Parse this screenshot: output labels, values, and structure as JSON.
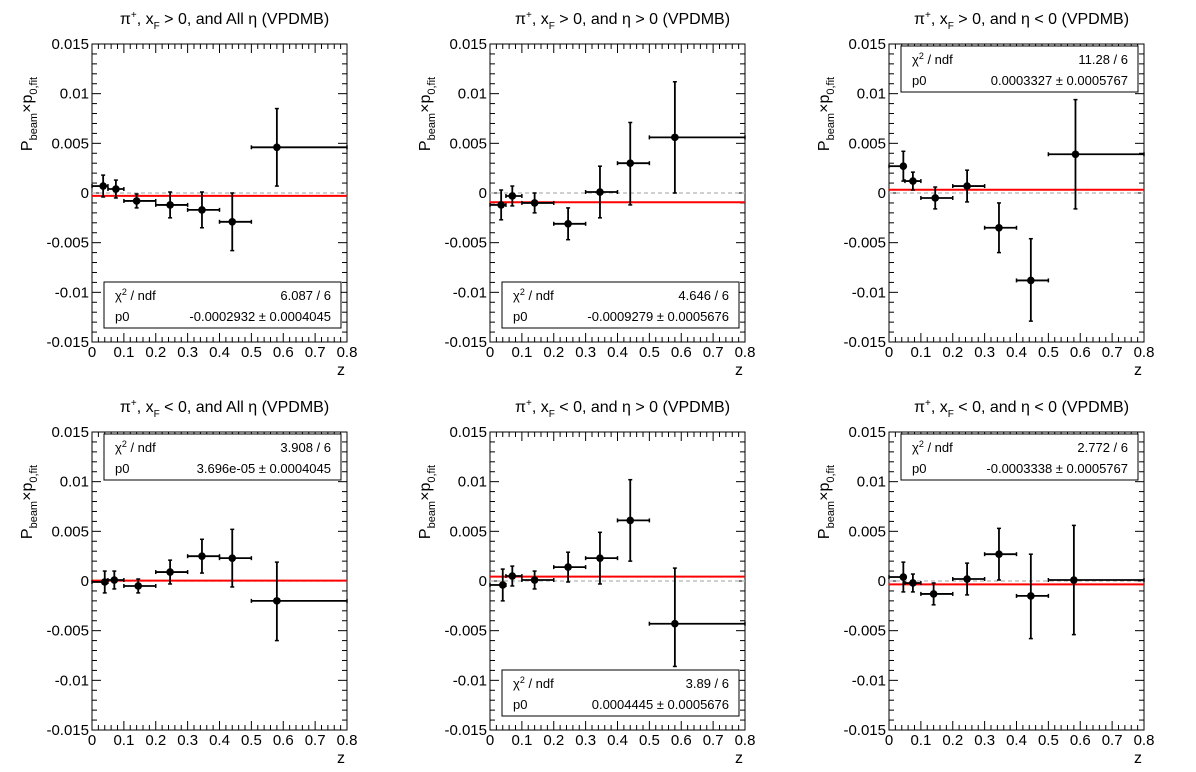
{
  "common": {
    "ylabel": "P_beam×p_0,fit",
    "ylabel_main": "P",
    "ylabel_sub1": "beam",
    "ylabel_mid": "×p",
    "ylabel_sub2": "0,fit",
    "xlabel": "z",
    "stat_row1_label": "χ² / ndf",
    "stat_row2_label": "p0",
    "fit_line_color": "#ff0000",
    "marker_color": "#000000",
    "zero_line_color": "#b4b4b4"
  },
  "chart_data": [
    {
      "type": "scatter",
      "title": "π⁺, x_F > 0, and All η (VPDMB)",
      "title_parts": [
        "π",
        "+",
        ", x",
        "F",
        " > 0, and All η (VPDMB)"
      ],
      "xlabel": "z",
      "ylabel": "P_beam×p_0,fit",
      "xlim": [
        0,
        0.8
      ],
      "ylim": [
        -0.015,
        0.015
      ],
      "xticks": [
        "0",
        "0.1",
        "0.2",
        "0.3",
        "0.4",
        "0.5",
        "0.6",
        "0.7",
        "0.8"
      ],
      "yticks": [
        "-0.015",
        "-0.01",
        "-0.005",
        "0",
        "0.005",
        "0.01",
        "0.015"
      ],
      "stats_position": "bottom-center",
      "stats": {
        "chi2_ndf": "6.087 / 6",
        "p0": "-0.0002932 ± 0.0004045"
      },
      "fit": {
        "p0": -0.0002932
      },
      "series": [
        {
          "points": [
            {
              "x": 0.035,
              "y": 0.0007,
              "xlo": 0.0,
              "xhi": 0.05,
              "ylo": -0.0004,
              "yhi": 0.0018
            },
            {
              "x": 0.075,
              "y": 0.0004,
              "xlo": 0.05,
              "xhi": 0.1,
              "ylo": -0.0005,
              "yhi": 0.0013
            },
            {
              "x": 0.14,
              "y": -0.0008,
              "xlo": 0.1,
              "xhi": 0.2,
              "ylo": -0.0015,
              "yhi": -0.0001
            },
            {
              "x": 0.245,
              "y": -0.0012,
              "xlo": 0.2,
              "xhi": 0.3,
              "ylo": -0.0025,
              "yhi": 0.0001
            },
            {
              "x": 0.345,
              "y": -0.0017,
              "xlo": 0.3,
              "xhi": 0.4,
              "ylo": -0.0035,
              "yhi": 0.0001
            },
            {
              "x": 0.44,
              "y": -0.0029,
              "xlo": 0.4,
              "xhi": 0.5,
              "ylo": -0.0058,
              "yhi": 0.0
            },
            {
              "x": 0.58,
              "y": 0.0046,
              "xlo": 0.5,
              "xhi": 0.8,
              "ylo": 0.0007,
              "yhi": 0.0085
            }
          ]
        }
      ]
    },
    {
      "type": "scatter",
      "title": "π⁺, x_F > 0, and η > 0 (VPDMB)",
      "title_parts": [
        "π",
        "+",
        ", x",
        "F",
        " > 0, and η > 0 (VPDMB)"
      ],
      "xlabel": "z",
      "ylabel": "P_beam×p_0,fit",
      "xlim": [
        0,
        0.8
      ],
      "ylim": [
        -0.015,
        0.015
      ],
      "xticks": [
        "0",
        "0.1",
        "0.2",
        "0.3",
        "0.4",
        "0.5",
        "0.6",
        "0.7",
        "0.8"
      ],
      "yticks": [
        "-0.015",
        "-0.01",
        "-0.005",
        "0",
        "0.005",
        "0.01",
        "0.015"
      ],
      "stats_position": "bottom-center",
      "stats": {
        "chi2_ndf": "4.646 / 6",
        "p0": "-0.0009279 ± 0.0005676"
      },
      "fit": {
        "p0": -0.0009279
      },
      "series": [
        {
          "points": [
            {
              "x": 0.035,
              "y": -0.0012,
              "xlo": 0.0,
              "xhi": 0.05,
              "ylo": -0.0027,
              "yhi": 0.0003
            },
            {
              "x": 0.07,
              "y": -0.0003,
              "xlo": 0.05,
              "xhi": 0.1,
              "ylo": -0.0013,
              "yhi": 0.0007
            },
            {
              "x": 0.14,
              "y": -0.001,
              "xlo": 0.1,
              "xhi": 0.2,
              "ylo": -0.002,
              "yhi": 0.0
            },
            {
              "x": 0.245,
              "y": -0.0031,
              "xlo": 0.2,
              "xhi": 0.3,
              "ylo": -0.0047,
              "yhi": -0.0015
            },
            {
              "x": 0.345,
              "y": 0.0001,
              "xlo": 0.3,
              "xhi": 0.4,
              "ylo": -0.0025,
              "yhi": 0.0027
            },
            {
              "x": 0.44,
              "y": 0.003,
              "xlo": 0.4,
              "xhi": 0.5,
              "ylo": -0.0012,
              "yhi": 0.0071
            },
            {
              "x": 0.58,
              "y": 0.0056,
              "xlo": 0.5,
              "xhi": 0.8,
              "ylo": 0.0,
              "yhi": 0.0112
            }
          ]
        }
      ]
    },
    {
      "type": "scatter",
      "title": "π⁺, x_F > 0, and η < 0 (VPDMB)",
      "title_parts": [
        "π",
        "+",
        ", x",
        "F",
        " > 0, and η < 0 (VPDMB)"
      ],
      "xlabel": "z",
      "ylabel": "P_beam×p_0,fit",
      "xlim": [
        0,
        0.8
      ],
      "ylim": [
        -0.015,
        0.015
      ],
      "xticks": [
        "0",
        "0.1",
        "0.2",
        "0.3",
        "0.4",
        "0.5",
        "0.6",
        "0.7",
        "0.8"
      ],
      "yticks": [
        "-0.015",
        "-0.01",
        "-0.005",
        "0",
        "0.005",
        "0.01",
        "0.015"
      ],
      "stats_position": "top-center",
      "stats": {
        "chi2_ndf": "11.28 / 6",
        "p0": "0.0003327 ± 0.0005767"
      },
      "fit": {
        "p0": 0.0003327
      },
      "series": [
        {
          "points": [
            {
              "x": 0.045,
              "y": 0.0027,
              "xlo": 0.0,
              "xhi": 0.05,
              "ylo": 0.0012,
              "yhi": 0.0042
            },
            {
              "x": 0.075,
              "y": 0.0012,
              "xlo": 0.05,
              "xhi": 0.1,
              "ylo": 0.0003,
              "yhi": 0.0021
            },
            {
              "x": 0.145,
              "y": -0.0005,
              "xlo": 0.1,
              "xhi": 0.2,
              "ylo": -0.0016,
              "yhi": 0.0006
            },
            {
              "x": 0.245,
              "y": 0.0007,
              "xlo": 0.2,
              "xhi": 0.3,
              "ylo": -0.0009,
              "yhi": 0.0023
            },
            {
              "x": 0.345,
              "y": -0.0035,
              "xlo": 0.3,
              "xhi": 0.4,
              "ylo": -0.006,
              "yhi": -0.001
            },
            {
              "x": 0.445,
              "y": -0.0088,
              "xlo": 0.4,
              "xhi": 0.5,
              "ylo": -0.0129,
              "yhi": -0.0046
            },
            {
              "x": 0.585,
              "y": 0.0039,
              "xlo": 0.5,
              "xhi": 0.8,
              "ylo": -0.0016,
              "yhi": 0.0094
            }
          ]
        }
      ]
    },
    {
      "type": "scatter",
      "title": "π⁺, x_F < 0, and All η (VPDMB)",
      "title_parts": [
        "π",
        "+",
        ", x",
        "F",
        " < 0, and All η (VPDMB)"
      ],
      "xlabel": "z",
      "ylabel": "P_beam×p_0,fit",
      "xlim": [
        0,
        0.8
      ],
      "ylim": [
        -0.015,
        0.015
      ],
      "xticks": [
        "0",
        "0.1",
        "0.2",
        "0.3",
        "0.4",
        "0.5",
        "0.6",
        "0.7",
        "0.8"
      ],
      "yticks": [
        "-0.015",
        "-0.01",
        "-0.005",
        "0",
        "0.005",
        "0.01",
        "0.015"
      ],
      "stats_position": "top-center",
      "stats": {
        "chi2_ndf": "3.908 / 6",
        "p0": "3.696e-05 ± 0.0004045"
      },
      "fit": {
        "p0": 3.696e-05
      },
      "series": [
        {
          "points": [
            {
              "x": 0.04,
              "y": -0.0001,
              "xlo": 0.0,
              "xhi": 0.05,
              "ylo": -0.0012,
              "yhi": 0.001
            },
            {
              "x": 0.07,
              "y": 0.0001,
              "xlo": 0.05,
              "xhi": 0.1,
              "ylo": -0.0008,
              "yhi": 0.001
            },
            {
              "x": 0.145,
              "y": -0.0005,
              "xlo": 0.1,
              "xhi": 0.2,
              "ylo": -0.0012,
              "yhi": 0.0002
            },
            {
              "x": 0.245,
              "y": 0.0009,
              "xlo": 0.2,
              "xhi": 0.3,
              "ylo": -0.0003,
              "yhi": 0.0021
            },
            {
              "x": 0.345,
              "y": 0.0025,
              "xlo": 0.3,
              "xhi": 0.4,
              "ylo": 0.0008,
              "yhi": 0.0042
            },
            {
              "x": 0.44,
              "y": 0.0023,
              "xlo": 0.4,
              "xhi": 0.5,
              "ylo": -0.0006,
              "yhi": 0.0052
            },
            {
              "x": 0.58,
              "y": -0.002,
              "xlo": 0.5,
              "xhi": 0.8,
              "ylo": -0.006,
              "yhi": 0.0019
            }
          ]
        }
      ]
    },
    {
      "type": "scatter",
      "title": "π⁺, x_F < 0, and η > 0 (VPDMB)",
      "title_parts": [
        "π",
        "+",
        ", x",
        "F",
        " < 0, and η > 0 (VPDMB)"
      ],
      "xlabel": "z",
      "ylabel": "P_beam×p_0,fit",
      "xlim": [
        0,
        0.8
      ],
      "ylim": [
        -0.015,
        0.015
      ],
      "xticks": [
        "0",
        "0.1",
        "0.2",
        "0.3",
        "0.4",
        "0.5",
        "0.6",
        "0.7",
        "0.8"
      ],
      "yticks": [
        "-0.015",
        "-0.01",
        "-0.005",
        "0",
        "0.005",
        "0.01",
        "0.015"
      ],
      "stats_position": "bottom-center",
      "stats": {
        "chi2_ndf": "3.89 / 6",
        "p0": "0.0004445 ± 0.0005676"
      },
      "fit": {
        "p0": 0.0004445
      },
      "series": [
        {
          "points": [
            {
              "x": 0.04,
              "y": -0.0004,
              "xlo": 0.0,
              "xhi": 0.05,
              "ylo": -0.002,
              "yhi": 0.0012
            },
            {
              "x": 0.07,
              "y": 0.0005,
              "xlo": 0.05,
              "xhi": 0.1,
              "ylo": -0.0005,
              "yhi": 0.0015
            },
            {
              "x": 0.14,
              "y": 0.0001,
              "xlo": 0.1,
              "xhi": 0.2,
              "ylo": -0.0008,
              "yhi": 0.001
            },
            {
              "x": 0.245,
              "y": 0.0014,
              "xlo": 0.2,
              "xhi": 0.3,
              "ylo": -0.0001,
              "yhi": 0.0029
            },
            {
              "x": 0.345,
              "y": 0.0023,
              "xlo": 0.3,
              "xhi": 0.4,
              "ylo": -0.0003,
              "yhi": 0.0049
            },
            {
              "x": 0.44,
              "y": 0.0061,
              "xlo": 0.4,
              "xhi": 0.5,
              "ylo": 0.002,
              "yhi": 0.0102
            },
            {
              "x": 0.58,
              "y": -0.0043,
              "xlo": 0.5,
              "xhi": 0.8,
              "ylo": -0.0086,
              "yhi": 0.0013
            }
          ]
        }
      ]
    },
    {
      "type": "scatter",
      "title": "π⁺, x_F < 0, and η < 0 (VPDMB)",
      "title_parts": [
        "π",
        "+",
        ", x",
        "F",
        " < 0, and η < 0 (VPDMB)"
      ],
      "xlabel": "z",
      "ylabel": "P_beam×p_0,fit",
      "xlim": [
        0,
        0.8
      ],
      "ylim": [
        -0.015,
        0.015
      ],
      "xticks": [
        "0",
        "0.1",
        "0.2",
        "0.3",
        "0.4",
        "0.5",
        "0.6",
        "0.7",
        "0.8"
      ],
      "yticks": [
        "-0.015",
        "-0.01",
        "-0.005",
        "0",
        "0.005",
        "0.01",
        "0.015"
      ],
      "stats_position": "top-center",
      "stats": {
        "chi2_ndf": "2.772 / 6",
        "p0": "-0.0003338 ± 0.0005767"
      },
      "fit": {
        "p0": -0.0003338
      },
      "series": [
        {
          "points": [
            {
              "x": 0.045,
              "y": 0.0004,
              "xlo": 0.0,
              "xhi": 0.05,
              "ylo": -0.0011,
              "yhi": 0.0019
            },
            {
              "x": 0.075,
              "y": -0.0002,
              "xlo": 0.05,
              "xhi": 0.1,
              "ylo": -0.0011,
              "yhi": 0.0007
            },
            {
              "x": 0.14,
              "y": -0.0013,
              "xlo": 0.1,
              "xhi": 0.2,
              "ylo": -0.0024,
              "yhi": -0.0002
            },
            {
              "x": 0.245,
              "y": 0.0002,
              "xlo": 0.2,
              "xhi": 0.3,
              "ylo": -0.0014,
              "yhi": 0.0018
            },
            {
              "x": 0.345,
              "y": 0.0027,
              "xlo": 0.3,
              "xhi": 0.4,
              "ylo": 0.0001,
              "yhi": 0.0053
            },
            {
              "x": 0.445,
              "y": -0.0015,
              "xlo": 0.4,
              "xhi": 0.5,
              "ylo": -0.0058,
              "yhi": 0.0027
            },
            {
              "x": 0.58,
              "y": 0.0001,
              "xlo": 0.5,
              "xhi": 0.8,
              "ylo": -0.0054,
              "yhi": 0.0056
            }
          ]
        }
      ]
    }
  ]
}
